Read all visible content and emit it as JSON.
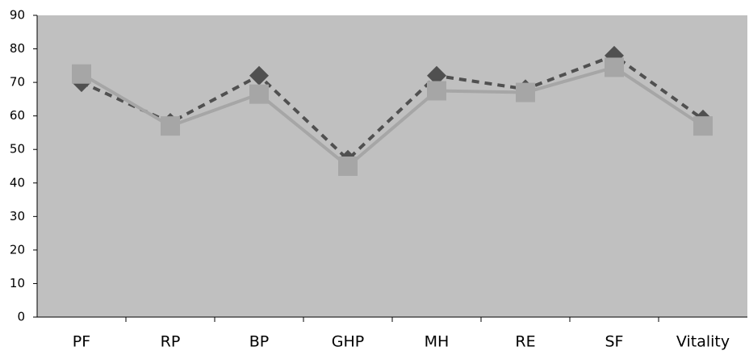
{
  "chart_data": {
    "type": "line",
    "categories": [
      "PF",
      "RP",
      "BP",
      "GHP",
      "MH",
      "RE",
      "SF",
      "Vitality"
    ],
    "series": [
      {
        "color": "#505050",
        "marker": "diamond",
        "dashed": true,
        "values": [
          70,
          58,
          72,
          47,
          72,
          68,
          78,
          59
        ]
      },
      {
        "color": "#a6a6a6",
        "marker": "square",
        "dashed": false,
        "values": [
          72.5,
          57,
          66.5,
          45,
          67.5,
          67,
          74.5,
          57
        ]
      }
    ],
    "ylim": [
      0,
      90
    ],
    "yticks": [
      0,
      10,
      20,
      30,
      40,
      50,
      60,
      70,
      80,
      90
    ],
    "plot_background": "#c0c0c0",
    "grid": false
  }
}
